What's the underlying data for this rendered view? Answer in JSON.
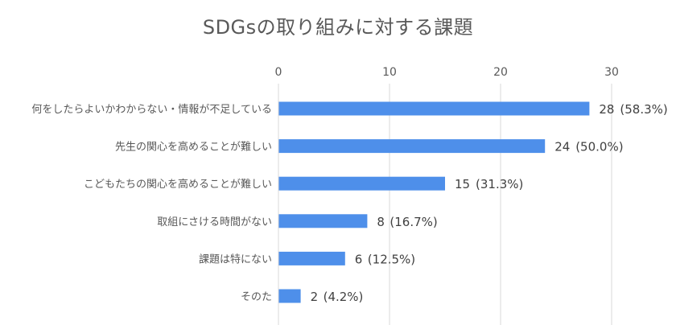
{
  "chart_data": {
    "type": "bar",
    "orientation": "horizontal",
    "title": "SDGsの取り組みに対する課題",
    "categories": [
      "何をしたらよいかわからない・情報が不足している",
      "先生の関心を高めることが難しい",
      "こどもたちの関心を高めることが難しい",
      "取組にさける時間がない",
      "課題は特にない",
      "そのた"
    ],
    "values": [
      28,
      24,
      15,
      8,
      6,
      2
    ],
    "percent_labels": [
      "(58.3%)",
      "(50.0%)",
      "(31.3%)",
      "(16.7%)",
      "(12.5%)",
      "(4.2%)"
    ],
    "xlim": [
      0,
      30
    ],
    "xticks": [
      0,
      10,
      20,
      30
    ],
    "x_axis_position": "top",
    "grid": true,
    "legend": "none",
    "bar_color": "#4E8FEA",
    "grid_color": "#D9D9D9"
  }
}
